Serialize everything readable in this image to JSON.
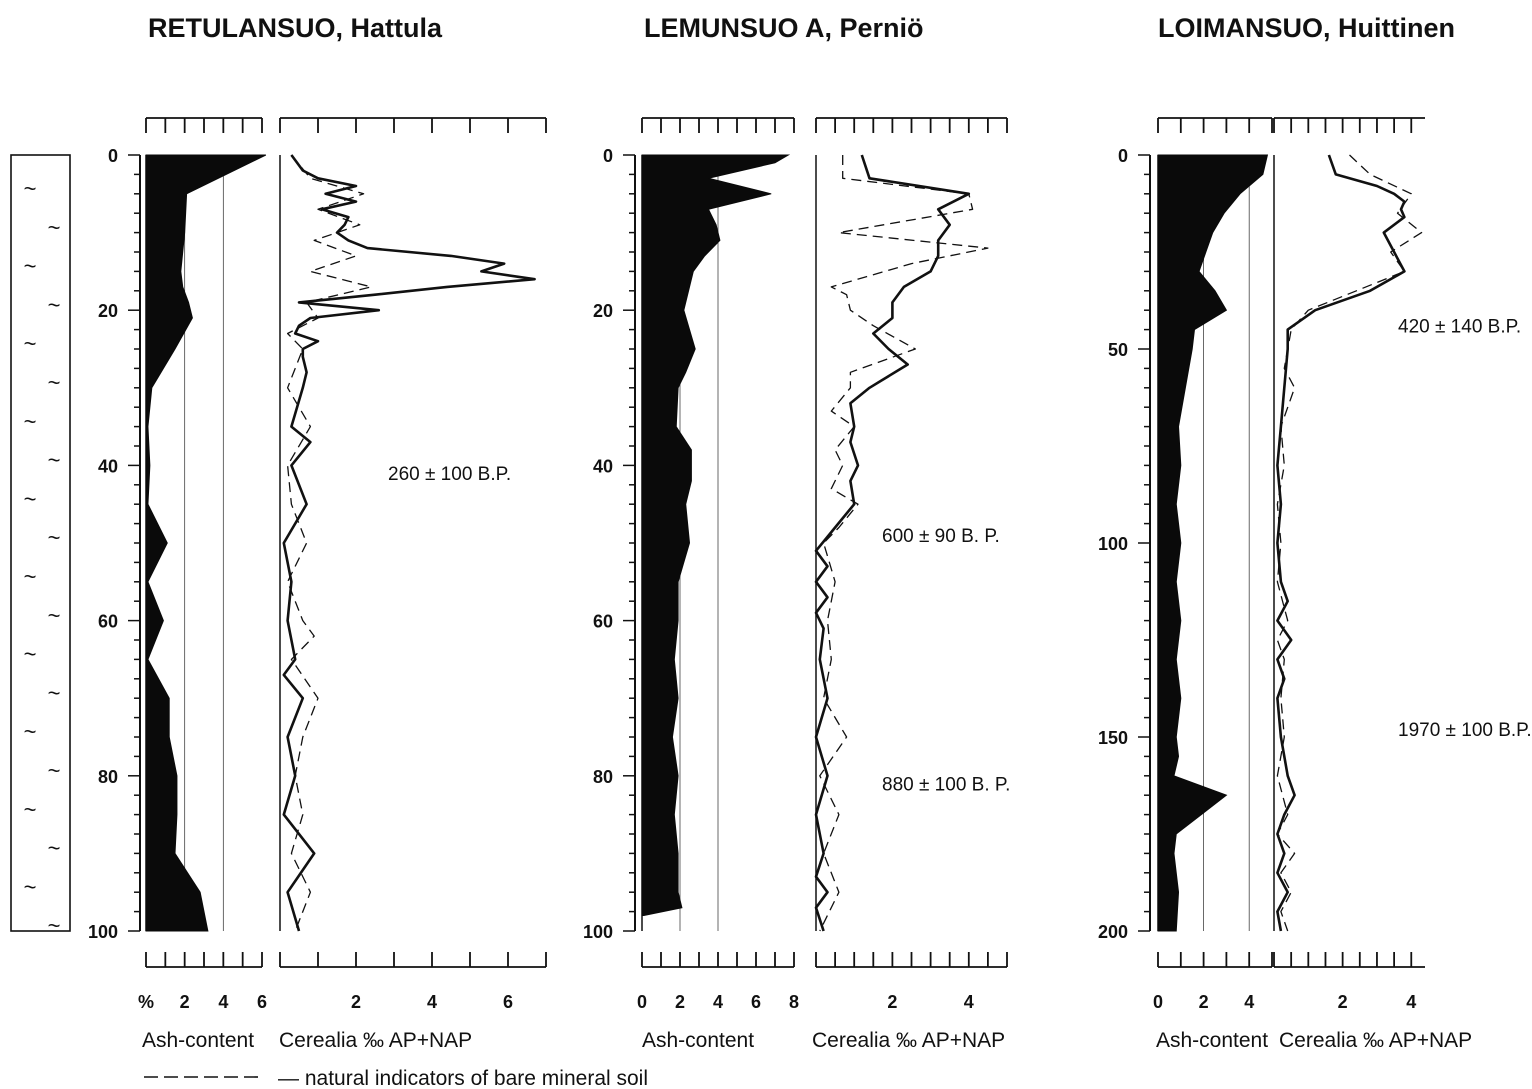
{
  "chart_data": [
    {
      "type": "line",
      "title": "RETULANSUO, Hattula",
      "depth_axis": {
        "range": [
          0,
          100
        ],
        "ticks": [
          "0",
          "20",
          "40",
          "60",
          "80",
          "100"
        ]
      },
      "ash": {
        "label": "Ash-content",
        "ticklabels": [
          "%",
          "2",
          "4",
          "6"
        ],
        "xlim": [
          0,
          6
        ],
        "depth": [
          0,
          5,
          10,
          15,
          17,
          19,
          21,
          25,
          30,
          35,
          40,
          45,
          50,
          55,
          60,
          65,
          70,
          75,
          80,
          85,
          90,
          95,
          100
        ],
        "value": [
          6.2,
          2.1,
          2.0,
          1.8,
          1.9,
          2.2,
          2.4,
          1.5,
          0.3,
          0.1,
          0.2,
          0.1,
          1.1,
          0.1,
          0.9,
          0.1,
          1.2,
          1.2,
          1.6,
          1.6,
          1.5,
          2.8,
          3.2
        ]
      },
      "cerealia": {
        "label": "Cerealia ‰ AP+NAP",
        "ticklabels": [
          "2",
          "4",
          "6"
        ],
        "xlim": [
          0,
          7
        ],
        "solid": {
          "depth": [
            0,
            2,
            3,
            4,
            5,
            6,
            7,
            8,
            9,
            10,
            11,
            12,
            13,
            14,
            15,
            16,
            17,
            18,
            19,
            20,
            21,
            22,
            23,
            24,
            25,
            26,
            28,
            30,
            35,
            37,
            40,
            45,
            50,
            55,
            60,
            65,
            67,
            70,
            75,
            80,
            85,
            90,
            95,
            100
          ],
          "value": [
            0.3,
            0.6,
            1.0,
            2.0,
            1.2,
            2.0,
            1.1,
            1.8,
            1.7,
            1.5,
            1.8,
            2.3,
            4.5,
            5.9,
            5.3,
            6.7,
            4.4,
            2.5,
            0.5,
            2.6,
            0.8,
            0.5,
            0.4,
            1.0,
            0.6,
            0.6,
            0.7,
            0.6,
            0.3,
            0.8,
            0.3,
            0.7,
            0.1,
            0.3,
            0.2,
            0.4,
            0.1,
            0.6,
            0.2,
            0.4,
            0.1,
            0.9,
            0.2,
            0.5
          ]
        },
        "dashed": {
          "depth": [
            0,
            3,
            5,
            7,
            9,
            11,
            13,
            15,
            17,
            19,
            21,
            23,
            25,
            30,
            35,
            40,
            45,
            50,
            55,
            60,
            62,
            65,
            70,
            75,
            80,
            85,
            90,
            95,
            100
          ],
          "value": [
            0.3,
            0.8,
            2.2,
            1.0,
            2.1,
            0.9,
            2.0,
            0.8,
            2.4,
            0.7,
            1.0,
            0.2,
            0.6,
            0.2,
            0.8,
            0.2,
            0.3,
            0.7,
            0.2,
            0.6,
            0.9,
            0.3,
            1.0,
            0.6,
            0.4,
            0.6,
            0.3,
            0.8,
            0.4
          ]
        }
      },
      "dates": [
        {
          "text": "260 ± 100  B.P.",
          "depth": 41
        }
      ]
    },
    {
      "type": "line",
      "title": "LEMUNSUO  A, Perniö",
      "depth_axis": {
        "range": [
          0,
          100
        ],
        "ticks": [
          "0",
          "20",
          "40",
          "60",
          "80",
          "100"
        ]
      },
      "ash": {
        "label": "Ash-content",
        "ticklabels": [
          "0",
          "2",
          "4",
          "6",
          "8"
        ],
        "xlim": [
          0,
          8
        ],
        "depth": [
          0,
          1,
          3,
          5,
          7,
          9,
          11,
          13,
          15,
          20,
          25,
          28,
          30,
          35,
          38,
          42,
          45,
          50,
          55,
          60,
          65,
          70,
          75,
          80,
          85,
          90,
          95,
          97,
          98
        ],
        "value": [
          7.7,
          7.0,
          3.5,
          6.8,
          3.5,
          3.9,
          4.1,
          3.3,
          2.7,
          2.2,
          2.8,
          2.3,
          1.9,
          1.8,
          2.6,
          2.6,
          2.3,
          2.5,
          1.9,
          1.9,
          1.7,
          1.9,
          1.6,
          1.9,
          1.7,
          1.9,
          1.9,
          2.1,
          0.1
        ]
      },
      "cerealia": {
        "label": "Cerealia ‰ AP+NAP",
        "ticklabels": [
          "2",
          "4"
        ],
        "xlim": [
          0,
          5
        ],
        "solid": {
          "depth": [
            0,
            3,
            5,
            7,
            9,
            11,
            13,
            15,
            17,
            19,
            21,
            23,
            25,
            27,
            30,
            32,
            35,
            37,
            40,
            42,
            45,
            48,
            51,
            53,
            55,
            57,
            59,
            61,
            65,
            70,
            75,
            80,
            85,
            90,
            93,
            95,
            97,
            100
          ],
          "value": [
            1.2,
            1.4,
            4.0,
            3.2,
            3.5,
            3.2,
            3.2,
            3.0,
            2.3,
            2.0,
            2.0,
            1.5,
            1.9,
            2.4,
            1.4,
            0.9,
            1.0,
            0.9,
            1.1,
            0.9,
            1.0,
            0.5,
            0.0,
            0.3,
            0.0,
            0.3,
            0.0,
            0.2,
            0.1,
            0.3,
            0.0,
            0.3,
            0.0,
            0.2,
            0.0,
            0.3,
            0.0,
            0.2
          ]
        },
        "dashed": {
          "depth": [
            0,
            3,
            5,
            7,
            10,
            12,
            14,
            17,
            18,
            20,
            22,
            25,
            28,
            30,
            33,
            35,
            38,
            40,
            43,
            45,
            48,
            50,
            55,
            60,
            65,
            70,
            75,
            80,
            85,
            90,
            95,
            100
          ],
          "value": [
            0.7,
            0.7,
            4.0,
            4.1,
            0.6,
            4.5,
            2.5,
            0.4,
            0.8,
            0.9,
            1.5,
            2.6,
            0.9,
            0.9,
            0.4,
            1.0,
            0.5,
            0.7,
            0.4,
            1.1,
            0.6,
            0.2,
            0.5,
            0.3,
            0.4,
            0.2,
            0.8,
            0.1,
            0.6,
            0.2,
            0.6,
            0.1
          ]
        }
      },
      "dates": [
        {
          "text": "600 ±  90   B. P.",
          "depth": 49
        },
        {
          "text": "880 ±  100   B. P.",
          "depth": 81
        }
      ]
    },
    {
      "type": "line",
      "title": "LOIMANSUO, Huittinen",
      "depth_axis": {
        "range": [
          0,
          200
        ],
        "ticks": [
          "0",
          "50",
          "100",
          "150",
          "200"
        ]
      },
      "ash": {
        "label": "Ash-content",
        "ticklabels": [
          "0",
          "2",
          "4"
        ],
        "xlim": [
          0,
          5
        ],
        "depth": [
          0,
          5,
          10,
          15,
          20,
          25,
          30,
          35,
          40,
          45,
          50,
          60,
          70,
          80,
          90,
          100,
          110,
          120,
          130,
          140,
          150,
          155,
          160,
          165,
          170,
          175,
          180,
          190,
          200
        ],
        "value": [
          4.8,
          4.6,
          3.6,
          2.9,
          2.4,
          2.1,
          1.8,
          2.5,
          3.0,
          1.6,
          1.5,
          1.2,
          0.9,
          1.0,
          0.8,
          1.0,
          0.8,
          1.0,
          0.8,
          1.0,
          0.8,
          0.9,
          0.7,
          3.0,
          1.9,
          0.8,
          0.7,
          0.9,
          0.8
        ]
      },
      "cerealia": {
        "label": "Cerealia ‰ AP+NAP",
        "ticklabels": [
          "2",
          "4"
        ],
        "xlim": [
          0,
          4.4
        ],
        "solid": {
          "depth": [
            0,
            5,
            8,
            10,
            12,
            14,
            16,
            20,
            25,
            30,
            35,
            40,
            45,
            50,
            60,
            70,
            80,
            90,
            100,
            110,
            115,
            120,
            125,
            130,
            135,
            140,
            150,
            160,
            165,
            170,
            175,
            180,
            185,
            190,
            195,
            200
          ],
          "value": [
            1.6,
            1.8,
            3.0,
            3.5,
            3.8,
            3.7,
            3.8,
            3.2,
            3.5,
            3.8,
            2.8,
            1.2,
            0.4,
            0.4,
            0.3,
            0.2,
            0.1,
            0.2,
            0.1,
            0.2,
            0.4,
            0.1,
            0.5,
            0.1,
            0.3,
            0.1,
            0.2,
            0.4,
            0.6,
            0.3,
            0.1,
            0.3,
            0.1,
            0.4,
            0.1,
            0.2
          ]
        },
        "dashed": {
          "depth": [
            0,
            5,
            10,
            15,
            20,
            25,
            30,
            35,
            40,
            45,
            55,
            60,
            70,
            80,
            90,
            100,
            110,
            120,
            125,
            130,
            140,
            150,
            160,
            170,
            175,
            180,
            185,
            190,
            195,
            200
          ],
          "value": [
            2.2,
            2.8,
            4.0,
            3.6,
            4.3,
            3.4,
            3.8,
            2.4,
            1.0,
            0.5,
            0.3,
            0.6,
            0.2,
            0.3,
            0.1,
            0.2,
            0.1,
            0.4,
            0.1,
            0.3,
            0.2,
            0.3,
            0.1,
            0.4,
            0.1,
            0.6,
            0.2,
            0.5,
            0.2,
            0.4
          ]
        }
      },
      "dates": [
        {
          "text": "420 ± 140  B.P.",
          "depth": 44
        },
        {
          "text": "1970 ± 100  B.P.",
          "depth": 148
        }
      ]
    }
  ],
  "legend": {
    "dashed_label": "— natural indicators of bare mineral soil"
  },
  "strat_column": {
    "symbol": "~"
  }
}
